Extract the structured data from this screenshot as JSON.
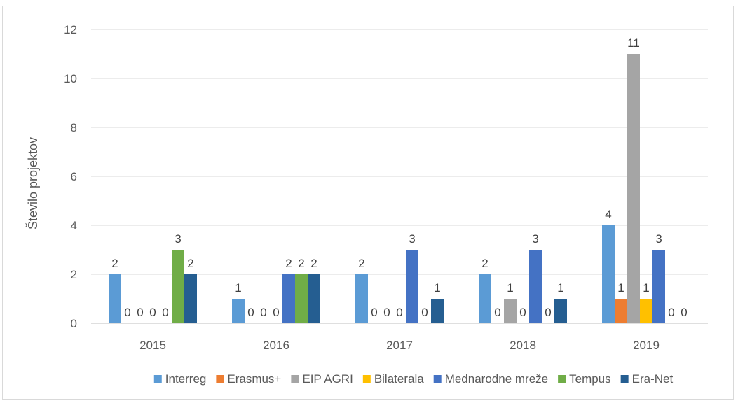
{
  "chart_data": {
    "type": "bar",
    "title": "",
    "xlabel": "",
    "ylabel": "Število projektov",
    "ylim": [
      0,
      12
    ],
    "yticks": [
      0,
      2,
      4,
      6,
      8,
      10,
      12
    ],
    "grid": true,
    "legend_position": "bottom",
    "categories": [
      "2015",
      "2016",
      "2017",
      "2018",
      "2019"
    ],
    "series": [
      {
        "name": "Interreg",
        "color": "#5B9BD5",
        "values": [
          2,
          1,
          2,
          2,
          4
        ]
      },
      {
        "name": "Erasmus+",
        "color": "#ED7D31",
        "values": [
          0,
          0,
          0,
          0,
          1
        ]
      },
      {
        "name": "EIP AGRI",
        "color": "#A5A5A5",
        "values": [
          0,
          0,
          0,
          1,
          11
        ]
      },
      {
        "name": "Bilaterala",
        "color": "#FFC000",
        "values": [
          0,
          0,
          0,
          0,
          1
        ]
      },
      {
        "name": "Mednarodne mreže",
        "color": "#4472C4",
        "values": [
          0,
          2,
          3,
          3,
          3
        ]
      },
      {
        "name": "Tempus",
        "color": "#70AD47",
        "values": [
          3,
          2,
          0,
          0,
          0
        ]
      },
      {
        "name": "Era-Net",
        "color": "#255E91",
        "values": [
          2,
          2,
          1,
          1,
          0
        ]
      }
    ]
  }
}
